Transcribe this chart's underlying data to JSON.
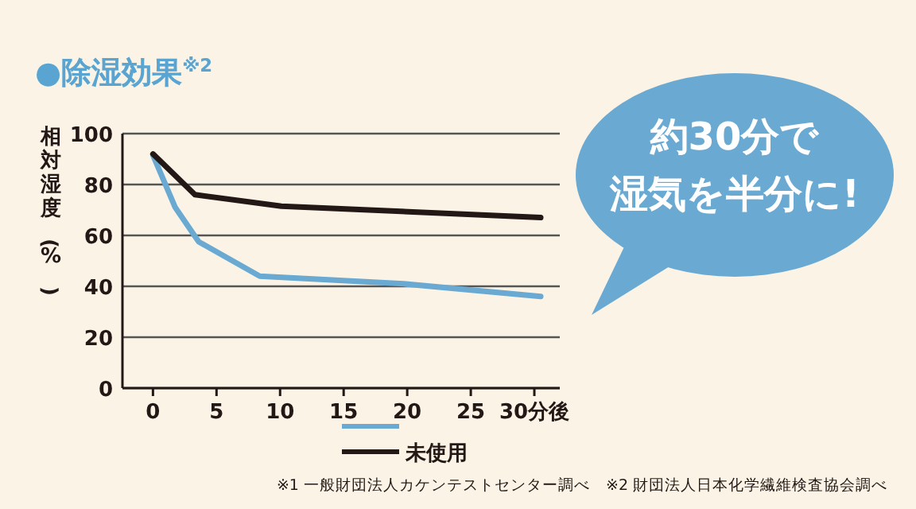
{
  "chart_data": {
    "type": "line",
    "title": "●除湿効果$^{※2}$",
    "ylabel": "相対湿度(%)",
    "xlim": [
      -2.4,
      32
    ],
    "ylim": [
      0,
      100
    ],
    "xticks": [
      0,
      5,
      10,
      15,
      20,
      25,
      {
        "value": 30,
        "label": "30分後"
      }
    ],
    "yticks": [
      0,
      20,
      40,
      60,
      80,
      100
    ],
    "grid": "y",
    "legend": "bottom",
    "line_style": "solid",
    "series": [
      {
        "color": "#6aa9d2",
        "x": [
          0,
          1.75,
          3.6,
          8.4,
          19.7,
          30.5
        ],
        "values": [
          91.5,
          71,
          57.5,
          44,
          41,
          36
        ]
      },
      {
        "name": "未使用",
        "color": "#231815",
        "x": [
          0,
          3.3,
          10.1,
          30.5
        ],
        "values": [
          92,
          76,
          71.5,
          67
        ]
      }
    ],
    "annotations": [
      "約30分で",
      "湿気を半分に!",
      "※1 一般財団法人カケンテストセンター調べ　※2 財団法人日本化学繊維検査協会調べ"
    ]
  }
}
